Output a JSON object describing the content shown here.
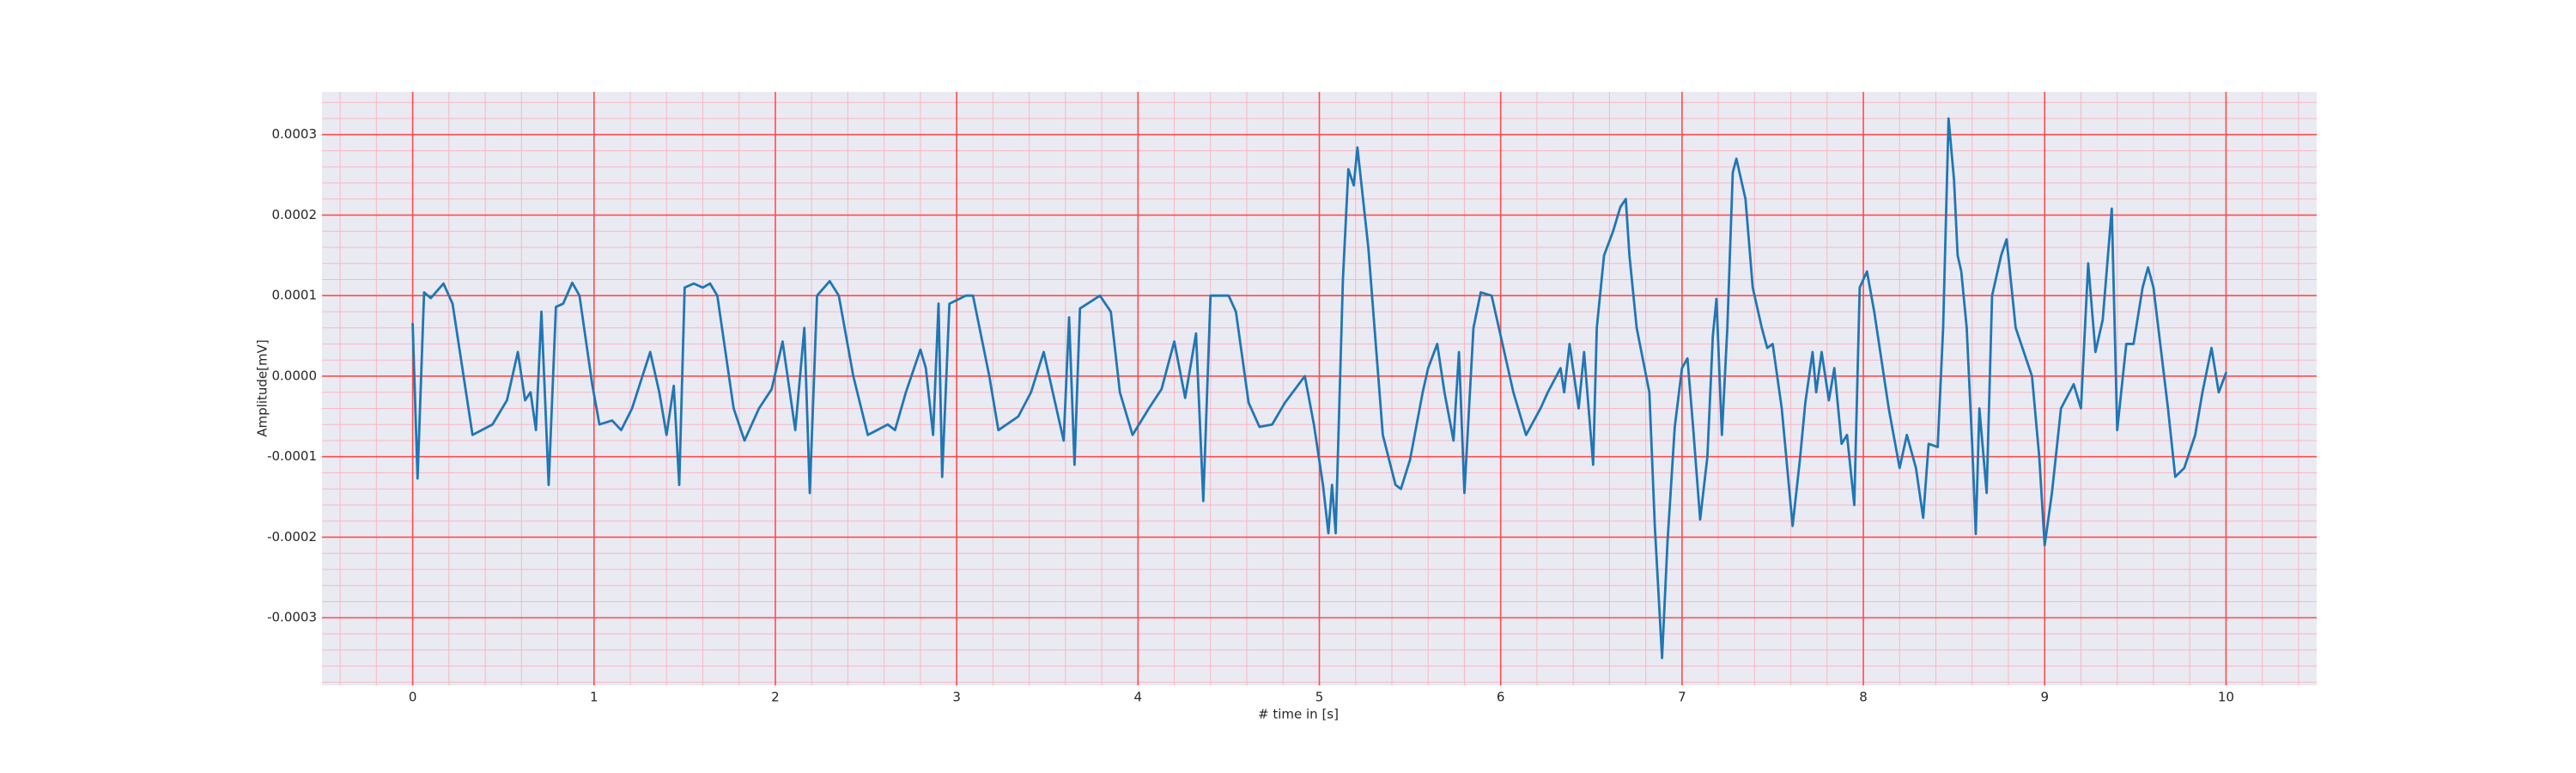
{
  "chart_data": {
    "type": "line",
    "xlabel": "# time in [s]",
    "ylabel": "Amplitude[mV]",
    "color": "#1f77b4",
    "background": "#eaeaf2",
    "grid": true,
    "grid_color": "#ff4d4d",
    "minor_grid": true,
    "minor_grid_color": "#f7b8c4",
    "xlim": [
      -0.5,
      10.5
    ],
    "xticks": [
      0,
      1,
      2,
      3,
      4,
      5,
      6,
      7,
      8,
      9,
      10
    ],
    "ylim": [
      -0.000384,
      0.000353
    ],
    "yticks": [
      -0.0003,
      -0.0002,
      -0.0001,
      {
        "value": 0,
        "label": "0.0000"
      },
      0.0001,
      0.0002,
      0.0003
    ],
    "x": [
      0,
      0.027,
      0.063,
      0.1,
      0.17,
      0.22,
      0.33,
      0.44,
      0.52,
      0.58,
      0.62,
      0.65,
      0.68,
      0.71,
      0.75,
      0.79,
      0.83,
      0.88,
      0.92,
      0.99,
      1.03,
      1.1,
      1.15,
      1.21,
      1.31,
      1.36,
      1.4,
      1.44,
      1.47,
      1.5,
      1.55,
      1.6,
      1.64,
      1.68,
      1.77,
      1.83,
      1.91,
      1.98,
      2.04,
      2.11,
      2.16,
      2.19,
      2.23,
      2.3,
      2.35,
      2.43,
      2.51,
      2.62,
      2.66,
      2.72,
      2.8,
      2.83,
      2.87,
      2.9,
      2.92,
      2.96,
      3.05,
      3.09,
      3.18,
      3.23,
      3.34,
      3.41,
      3.48,
      3.53,
      3.59,
      3.62,
      3.65,
      3.68,
      3.79,
      3.85,
      3.9,
      3.97,
      4.06,
      4.13,
      4.2,
      4.26,
      4.32,
      4.36,
      4.4,
      4.5,
      4.54,
      4.61,
      4.67,
      4.74,
      4.81,
      4.92,
      4.97,
      5.02,
      5.05,
      5.07,
      5.09,
      5.13,
      5.16,
      5.19,
      5.21,
      5.27,
      5.35,
      5.42,
      5.45,
      5.5,
      5.57,
      5.6,
      5.65,
      5.69,
      5.74,
      5.77,
      5.8,
      5.85,
      5.89,
      5.95,
      5.99,
      6.07,
      6.14,
      6.22,
      6.26,
      6.33,
      6.35,
      6.38,
      6.43,
      6.46,
      6.51,
      6.53,
      6.57,
      6.62,
      6.66,
      6.69,
      6.71,
      6.75,
      6.82,
      6.85,
      6.89,
      6.92,
      6.96,
      7.0,
      7.03,
      7.06,
      7.1,
      7.14,
      7.17,
      7.19,
      7.22,
      7.25,
      7.28,
      7.3,
      7.35,
      7.39,
      7.44,
      7.47,
      7.5,
      7.55,
      7.61,
      7.65,
      7.68,
      7.72,
      7.74,
      7.77,
      7.81,
      7.84,
      7.88,
      7.91,
      7.95,
      7.98,
      8.02,
      8.06,
      8.14,
      8.2,
      8.24,
      8.29,
      8.33,
      8.36,
      8.41,
      8.44,
      8.47,
      8.5,
      8.52,
      8.54,
      8.57,
      8.6,
      8.62,
      8.64,
      8.68,
      8.71,
      8.76,
      8.79,
      8.84,
      8.9,
      8.93,
      8.97,
      9.0,
      9.04,
      9.09,
      9.16,
      9.2,
      9.24,
      9.28,
      9.32,
      9.37,
      9.4,
      9.45,
      9.49,
      9.54,
      9.57,
      9.6,
      9.68,
      9.72,
      9.77,
      9.83,
      9.87,
      9.92,
      9.96,
      10.0
    ],
    "values": [
      6.5e-05,
      -0.000127,
      0.000104,
      9.7e-05,
      0.000115,
      9e-05,
      -7.3e-05,
      -6e-05,
      -3e-05,
      3e-05,
      -3e-05,
      -2e-05,
      -6.7e-05,
      8e-05,
      -0.000135,
      8.6e-05,
      9e-05,
      0.000116,
      0.0001,
      -1e-05,
      -6e-05,
      -5.5e-05,
      -6.7e-05,
      -4e-05,
      3e-05,
      -2e-05,
      -7.3e-05,
      -1.2e-05,
      -0.000135,
      0.00011,
      0.000115,
      0.00011,
      0.000115,
      0.0001,
      -4e-05,
      -8e-05,
      -4e-05,
      -1.6e-05,
      4.3e-05,
      -6.7e-05,
      6e-05,
      -0.000145,
      0.0001,
      0.000118,
      0.0001,
      0,
      -7.3e-05,
      -6e-05,
      -6.7e-05,
      -2e-05,
      3.3e-05,
      1e-05,
      -7.3e-05,
      9e-05,
      -0.000125,
      9e-05,
      0.0001,
      0.0001,
      0,
      -6.7e-05,
      -5e-05,
      -2e-05,
      3e-05,
      -2e-05,
      -8e-05,
      7.3e-05,
      -0.00011,
      8.4e-05,
      0.0001,
      8e-05,
      -2e-05,
      -7.3e-05,
      -4e-05,
      -1.6e-05,
      4.3e-05,
      -2.7e-05,
      5.3e-05,
      -0.000155,
      0.0001,
      0.0001,
      8e-05,
      -3.3e-05,
      -6.3e-05,
      -6e-05,
      -3.3e-05,
      0,
      -6e-05,
      -0.000135,
      -0.000195,
      -0.000135,
      -0.000195,
      0.00012,
      0.000257,
      0.000237,
      0.000284,
      0.00016,
      -7.3e-05,
      -0.000135,
      -0.00014,
      -0.000104,
      -2e-05,
      1e-05,
      4e-05,
      -2e-05,
      -8e-05,
      3e-05,
      -0.000145,
      6e-05,
      0.000104,
      0.0001,
      6e-05,
      -2e-05,
      -7.3e-05,
      -4e-05,
      -2e-05,
      1e-05,
      -2e-05,
      4e-05,
      -4e-05,
      3e-05,
      -0.00011,
      6e-05,
      0.00015,
      0.00018,
      0.00021,
      0.00022,
      0.00015,
      6e-05,
      -2e-05,
      -0.000186,
      -0.00035,
      -0.000206,
      -6.3e-05,
      1e-05,
      2.2e-05,
      -6e-05,
      -0.000178,
      -0.0001,
      5e-05,
      9.6e-05,
      -7.3e-05,
      6e-05,
      0.000253,
      0.00027,
      0.00022,
      0.00011,
      6e-05,
      3.5e-05,
      4e-05,
      -4e-05,
      -0.000186,
      -0.000104,
      -3.3e-05,
      3e-05,
      -2e-05,
      3e-05,
      -3e-05,
      1e-05,
      -8.4e-05,
      -7.3e-05,
      -0.00016,
      0.00011,
      0.00013,
      8e-05,
      -4e-05,
      -0.000114,
      -7.3e-05,
      -0.000114,
      -0.000176,
      -8.4e-05,
      -8.8e-05,
      6e-05,
      0.00032,
      0.000244,
      0.00015,
      0.00013,
      6e-05,
      -8.4e-05,
      -0.000196,
      -4e-05,
      -0.000145,
      0.0001,
      0.00015,
      0.00017,
      6e-05,
      2e-05,
      0,
      -0.0001,
      -0.00021,
      -0.000145,
      -4e-05,
      -1e-05,
      -4e-05,
      0.00014,
      3e-05,
      7e-05,
      0.000208,
      -6.7e-05,
      4e-05,
      4e-05,
      0.00011,
      0.000135,
      0.00011,
      -4e-05,
      -0.000125,
      -0.000114,
      -7.3e-05,
      -2e-05,
      3.5e-05,
      -2e-05,
      4e-06
    ]
  }
}
